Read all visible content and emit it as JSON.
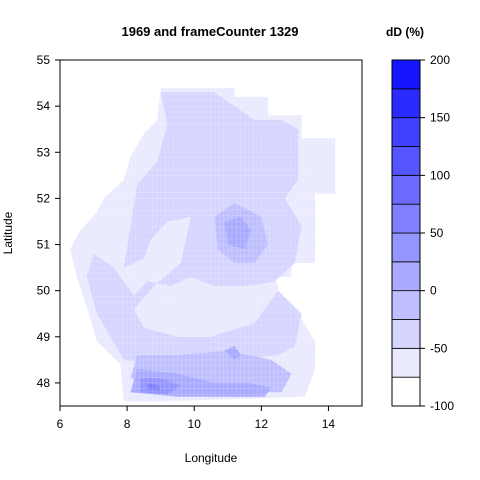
{
  "chart_data": {
    "type": "heatmap",
    "title": "1969 and frameCounter 1329",
    "xlabel": "Longitude",
    "ylabel": "Latitude",
    "xlim": [
      6,
      15
    ],
    "ylim": [
      47.5,
      55
    ],
    "x_ticks": [
      "6",
      "8",
      "10",
      "12",
      "14"
    ],
    "y_ticks": [
      "48",
      "49",
      "50",
      "51",
      "52",
      "53",
      "54",
      "55"
    ],
    "grid": true,
    "colorbar": {
      "title": "dD (%)",
      "min": -100,
      "max": 200,
      "step": 25,
      "ticks": [
        "-100",
        "-50",
        "0",
        "50",
        "100",
        "150",
        "200"
      ],
      "low_color": "#ffffff",
      "high_color": "#0000ff"
    },
    "regions": [
      {
        "level": -75,
        "points": [
          [
            9.0,
            54.4
          ],
          [
            11.2,
            54.4
          ],
          [
            11.2,
            54.2
          ],
          [
            12.2,
            54.2
          ],
          [
            12.2,
            53.8
          ],
          [
            13.2,
            53.8
          ],
          [
            13.2,
            53.3
          ],
          [
            14.2,
            53.3
          ],
          [
            14.2,
            52.1
          ],
          [
            13.6,
            52.1
          ],
          [
            13.6,
            50.6
          ],
          [
            12.9,
            50.6
          ],
          [
            12.9,
            50.3
          ],
          [
            12.4,
            50.3
          ],
          [
            12.6,
            49.8
          ],
          [
            13.1,
            49.5
          ],
          [
            13.6,
            48.9
          ],
          [
            13.6,
            48.3
          ],
          [
            13.3,
            47.7
          ],
          [
            9.0,
            47.6
          ],
          [
            7.9,
            47.6
          ],
          [
            7.8,
            48.4
          ],
          [
            7.1,
            48.9
          ],
          [
            6.9,
            49.4
          ],
          [
            6.5,
            50.3
          ],
          [
            6.3,
            50.9
          ],
          [
            6.6,
            51.3
          ],
          [
            7.1,
            51.7
          ],
          [
            7.3,
            52.0
          ],
          [
            7.9,
            52.4
          ],
          [
            8.1,
            52.9
          ],
          [
            8.5,
            53.4
          ],
          [
            8.9,
            53.7
          ]
        ]
      },
      {
        "level": -50,
        "points": [
          [
            9.0,
            54.3
          ],
          [
            10.6,
            54.3
          ],
          [
            11.0,
            54.1
          ],
          [
            11.8,
            53.7
          ],
          [
            12.6,
            53.7
          ],
          [
            13.1,
            53.5
          ],
          [
            13.1,
            52.4
          ],
          [
            12.7,
            52.0
          ],
          [
            13.2,
            51.4
          ],
          [
            13.0,
            50.6
          ],
          [
            12.4,
            50.2
          ],
          [
            11.6,
            50.1
          ],
          [
            10.6,
            50.1
          ],
          [
            9.9,
            50.3
          ],
          [
            9.3,
            50.1
          ],
          [
            8.6,
            50.2
          ],
          [
            8.2,
            49.9
          ],
          [
            7.6,
            50.5
          ],
          [
            7.0,
            50.8
          ],
          [
            6.8,
            50.3
          ],
          [
            7.1,
            49.5
          ],
          [
            7.5,
            49.0
          ],
          [
            7.9,
            48.5
          ],
          [
            9.0,
            48.4
          ],
          [
            11.0,
            48.5
          ],
          [
            12.5,
            48.6
          ],
          [
            13.0,
            48.8
          ],
          [
            13.2,
            49.5
          ],
          [
            12.5,
            50.0
          ],
          [
            11.8,
            49.3
          ],
          [
            10.5,
            49.0
          ],
          [
            9.5,
            49.0
          ],
          [
            8.5,
            49.2
          ],
          [
            8.2,
            49.6
          ],
          [
            8.8,
            50.1
          ],
          [
            9.6,
            50.6
          ],
          [
            9.9,
            51.6
          ],
          [
            9.2,
            51.5
          ],
          [
            8.7,
            51.1
          ],
          [
            8.5,
            50.7
          ],
          [
            7.9,
            50.5
          ],
          [
            8.3,
            52.3
          ],
          [
            8.9,
            52.8
          ],
          [
            9.2,
            53.6
          ]
        ]
      },
      {
        "level": -25,
        "points": [
          [
            10.6,
            51.6
          ],
          [
            11.2,
            51.9
          ],
          [
            12.0,
            51.6
          ],
          [
            12.2,
            51.0
          ],
          [
            11.8,
            50.6
          ],
          [
            11.2,
            50.6
          ],
          [
            10.7,
            50.9
          ]
        ]
      },
      {
        "level": -25,
        "points": [
          [
            8.3,
            48.6
          ],
          [
            9.5,
            48.6
          ],
          [
            11.0,
            48.7
          ],
          [
            12.3,
            48.5
          ],
          [
            12.9,
            48.2
          ],
          [
            12.6,
            47.8
          ],
          [
            11.0,
            47.8
          ],
          [
            9.5,
            47.9
          ],
          [
            8.1,
            48.1
          ]
        ]
      },
      {
        "level": 0,
        "points": [
          [
            10.9,
            51.5
          ],
          [
            11.4,
            51.6
          ],
          [
            11.7,
            51.3
          ],
          [
            11.5,
            50.9
          ],
          [
            11.0,
            51.0
          ]
        ]
      },
      {
        "level": 0,
        "points": [
          [
            8.3,
            48.3
          ],
          [
            9.5,
            48.2
          ],
          [
            10.6,
            48.0
          ],
          [
            11.6,
            48.0
          ],
          [
            12.3,
            47.9
          ],
          [
            12.1,
            47.7
          ],
          [
            9.5,
            47.7
          ],
          [
            8.1,
            47.8
          ]
        ]
      },
      {
        "level": 0,
        "points": [
          [
            10.9,
            48.7
          ],
          [
            11.2,
            48.8
          ],
          [
            11.4,
            48.6
          ],
          [
            11.2,
            48.5
          ]
        ]
      },
      {
        "level": 25,
        "points": [
          [
            8.4,
            48.1
          ],
          [
            9.0,
            48.1
          ],
          [
            9.6,
            47.95
          ],
          [
            9.2,
            47.75
          ],
          [
            8.4,
            47.8
          ]
        ]
      },
      {
        "level": 50,
        "points": [
          [
            8.6,
            48.0
          ],
          [
            8.9,
            47.95
          ],
          [
            9.0,
            47.85
          ],
          [
            8.6,
            47.85
          ]
        ]
      }
    ]
  }
}
